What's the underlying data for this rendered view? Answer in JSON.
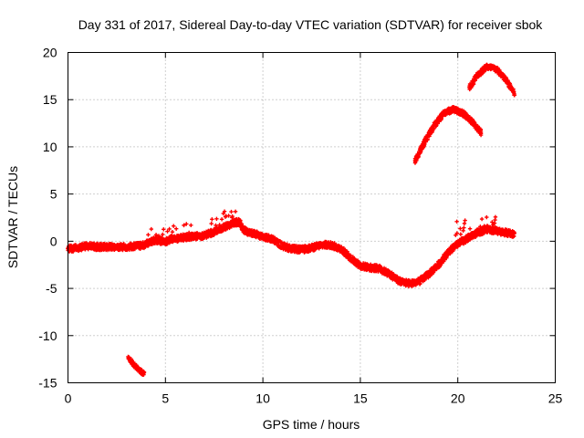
{
  "chart_data": {
    "type": "scatter",
    "title": "Day 331 of 2017, Sidereal Day-to-day VTEC variation (SDTVAR) for receiver sbok",
    "xlabel": "GPS time / hours",
    "ylabel": "SDTVAR / TECUs",
    "xlim": [
      0,
      25
    ],
    "ylim": [
      -15,
      20
    ],
    "xticks": [
      0,
      5,
      10,
      15,
      20,
      25
    ],
    "yticks": [
      -15,
      -10,
      -5,
      0,
      5,
      10,
      15,
      20
    ],
    "grid": true,
    "series": [
      {
        "name": "satellite-track-main",
        "color": "#ff0000",
        "marker": "cross",
        "spread": 0.35,
        "points": [
          [
            0.0,
            -0.8
          ],
          [
            0.5,
            -0.7
          ],
          [
            1.0,
            -0.5
          ],
          [
            1.5,
            -0.6
          ],
          [
            2.0,
            -0.6
          ],
          [
            2.5,
            -0.6
          ],
          [
            3.0,
            -0.6
          ],
          [
            3.5,
            -0.5
          ],
          [
            3.8,
            -0.5
          ],
          [
            4.2,
            -0.1
          ],
          [
            4.5,
            0.1
          ],
          [
            5.0,
            0.0
          ],
          [
            5.3,
            0.2
          ],
          [
            5.6,
            0.3
          ],
          [
            6.0,
            0.4
          ],
          [
            6.5,
            0.5
          ],
          [
            7.0,
            0.6
          ],
          [
            7.5,
            1.0
          ],
          [
            8.0,
            1.5
          ],
          [
            8.5,
            1.9
          ],
          [
            8.8,
            2.1
          ],
          [
            9.0,
            1.2
          ],
          [
            9.5,
            0.8
          ],
          [
            10.0,
            0.5
          ],
          [
            10.5,
            0.2
          ],
          [
            11.0,
            -0.5
          ],
          [
            11.5,
            -0.8
          ],
          [
            12.0,
            -0.9
          ],
          [
            12.5,
            -0.7
          ],
          [
            13.0,
            -0.4
          ],
          [
            13.5,
            -0.4
          ],
          [
            14.0,
            -0.8
          ],
          [
            14.5,
            -1.8
          ],
          [
            15.0,
            -2.6
          ],
          [
            15.5,
            -2.8
          ],
          [
            16.0,
            -2.9
          ],
          [
            16.5,
            -3.5
          ],
          [
            17.0,
            -4.2
          ],
          [
            17.5,
            -4.5
          ],
          [
            18.0,
            -4.3
          ],
          [
            18.5,
            -3.5
          ],
          [
            19.0,
            -2.5
          ],
          [
            19.5,
            -1.2
          ],
          [
            20.0,
            -0.3
          ],
          [
            20.5,
            0.3
          ],
          [
            21.0,
            0.9
          ],
          [
            21.5,
            1.3
          ],
          [
            22.0,
            1.1
          ],
          [
            22.5,
            0.9
          ],
          [
            22.9,
            0.7
          ]
        ]
      },
      {
        "name": "satellite-track-upper-1",
        "color": "#ff0000",
        "marker": "cross",
        "spread": 0.3,
        "points": [
          [
            17.8,
            8.5
          ],
          [
            18.3,
            10.5
          ],
          [
            18.8,
            12.3
          ],
          [
            19.3,
            13.6
          ],
          [
            19.8,
            14.0
          ],
          [
            20.3,
            13.5
          ],
          [
            20.8,
            12.5
          ],
          [
            21.2,
            11.5
          ]
        ]
      },
      {
        "name": "satellite-track-upper-2",
        "color": "#ff0000",
        "marker": "cross",
        "spread": 0.3,
        "points": [
          [
            20.6,
            16.3
          ],
          [
            21.0,
            17.6
          ],
          [
            21.5,
            18.5
          ],
          [
            22.0,
            18.2
          ],
          [
            22.5,
            17.0
          ],
          [
            22.9,
            15.7
          ]
        ]
      },
      {
        "name": "satellite-track-lower",
        "color": "#ff0000",
        "marker": "cross",
        "spread": 0.25,
        "points": [
          [
            3.1,
            -12.4
          ],
          [
            3.4,
            -13.1
          ],
          [
            3.7,
            -13.7
          ],
          [
            3.9,
            -14.1
          ]
        ]
      },
      {
        "name": "scatter-cluster",
        "color": "#ff0000",
        "marker": "cross",
        "spread": 0.9,
        "points": [
          [
            4.5,
            0.4
          ],
          [
            5.2,
            0.8
          ],
          [
            6.2,
            1.0
          ],
          [
            7.8,
            1.8
          ],
          [
            8.3,
            2.4
          ],
          [
            20.3,
            1.5
          ],
          [
            21.6,
            1.8
          ]
        ]
      }
    ]
  }
}
